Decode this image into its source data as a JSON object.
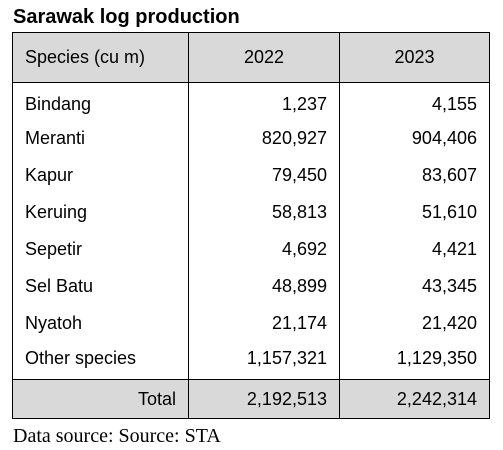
{
  "title": "Sarawak log production",
  "table": {
    "headers": [
      "Species (cu m)",
      "2022",
      "2023"
    ],
    "rows": [
      {
        "species": "Bindang",
        "y2022": "1,237",
        "y2023": "4,155"
      },
      {
        "species": "Meranti",
        "y2022": "820,927",
        "y2023": "904,406"
      },
      {
        "species": "Kapur",
        "y2022": "79,450",
        "y2023": "83,607"
      },
      {
        "species": "Keruing",
        "y2022": "58,813",
        "y2023": "51,610"
      },
      {
        "species": "Sepetir",
        "y2022": "4,692",
        "y2023": "4,421"
      },
      {
        "species": "Sel Batu",
        "y2022": "48,899",
        "y2023": "43,345"
      },
      {
        "species": "Nyatoh",
        "y2022": "21,174",
        "y2023": "21,420"
      },
      {
        "species": "Other species",
        "y2022": "1,157,321",
        "y2023": "1,129,350"
      }
    ],
    "total": {
      "label": "Total",
      "y2022": "2,192,513",
      "y2023": "2,242,314"
    }
  },
  "source": "Data source: Source:  STA",
  "colors": {
    "header_fill": "#d9d9d9",
    "border": "#000000"
  }
}
